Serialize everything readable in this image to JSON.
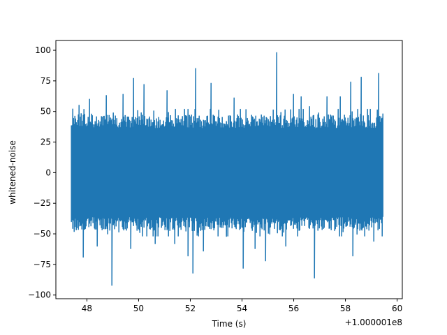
{
  "chart_data": {
    "type": "line",
    "title": "",
    "xlabel": "Time (s)",
    "ylabel": "whitened-noise",
    "x_offset_label": "+1.000001e8",
    "xlim": [
      46.8,
      60.2
    ],
    "ylim": [
      -103,
      108
    ],
    "xticks": [
      48,
      50,
      52,
      54,
      56,
      58,
      60
    ],
    "xtick_labels": [
      "48",
      "50",
      "52",
      "54",
      "56",
      "58",
      "60"
    ],
    "yticks": [
      -100,
      -75,
      -50,
      -25,
      0,
      25,
      50,
      75,
      100
    ],
    "ytick_labels": [
      "−100",
      "−75",
      "−50",
      "−25",
      "0",
      "25",
      "50",
      "75",
      "100"
    ],
    "grid": false,
    "legend": "none",
    "series": [
      {
        "color": "#1f77b4",
        "x_start": 47.4,
        "x_end": 59.45,
        "typical_range": [
          -45,
          45
        ],
        "peaks": [
          {
            "x": 47.45,
            "y": 52
          },
          {
            "x": 47.5,
            "y": -48
          },
          {
            "x": 47.7,
            "y": 55
          },
          {
            "x": 47.85,
            "y": -69
          },
          {
            "x": 48.1,
            "y": 60
          },
          {
            "x": 48.4,
            "y": -60
          },
          {
            "x": 48.75,
            "y": 63
          },
          {
            "x": 48.98,
            "y": -92
          },
          {
            "x": 49.4,
            "y": 64
          },
          {
            "x": 49.7,
            "y": -62
          },
          {
            "x": 49.8,
            "y": 77
          },
          {
            "x": 50.2,
            "y": 72
          },
          {
            "x": 50.65,
            "y": -58
          },
          {
            "x": 51.1,
            "y": 67
          },
          {
            "x": 51.4,
            "y": -58
          },
          {
            "x": 51.9,
            "y": -68
          },
          {
            "x": 52.1,
            "y": -82
          },
          {
            "x": 52.2,
            "y": 85
          },
          {
            "x": 52.5,
            "y": -64
          },
          {
            "x": 52.8,
            "y": 73
          },
          {
            "x": 53.4,
            "y": -52
          },
          {
            "x": 53.7,
            "y": 61
          },
          {
            "x": 54.05,
            "y": -78
          },
          {
            "x": 54.5,
            "y": -62
          },
          {
            "x": 54.9,
            "y": -72
          },
          {
            "x": 55.35,
            "y": 98
          },
          {
            "x": 55.7,
            "y": -60
          },
          {
            "x": 56.0,
            "y": 64
          },
          {
            "x": 56.3,
            "y": 62
          },
          {
            "x": 56.6,
            "y": 54
          },
          {
            "x": 56.8,
            "y": -86
          },
          {
            "x": 57.3,
            "y": 62
          },
          {
            "x": 57.8,
            "y": 62
          },
          {
            "x": 58.2,
            "y": 74
          },
          {
            "x": 58.3,
            "y": -68
          },
          {
            "x": 58.6,
            "y": 78
          },
          {
            "x": 59.1,
            "y": -56
          },
          {
            "x": 59.3,
            "y": 81
          },
          {
            "x": 59.45,
            "y": 48
          }
        ]
      }
    ]
  }
}
